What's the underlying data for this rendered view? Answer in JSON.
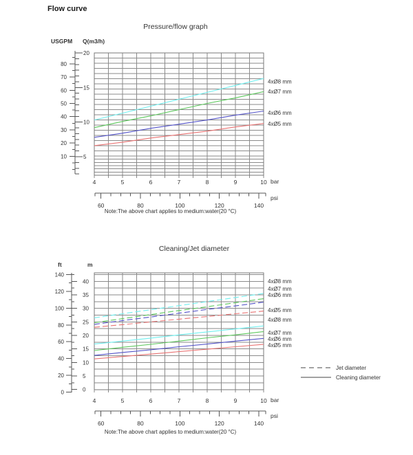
{
  "page": {
    "title": "Flow curve"
  },
  "colors": {
    "diam8": "#6FEFEF",
    "diam7": "#5CC85C",
    "diam6": "#5353C8",
    "diam5": "#E87272",
    "grid": "#8a8a8a",
    "border": "#777777",
    "axis": "#555555",
    "text": "#333333",
    "legend_line": "#444444"
  },
  "chart_data": [
    {
      "type": "line",
      "title": "Pressure/flow graph",
      "x": {
        "unit": "bar",
        "ticks": [
          4,
          5,
          6,
          7,
          8,
          9,
          10
        ],
        "range": [
          4,
          10
        ]
      },
      "x2": {
        "unit": "psi",
        "ticks": [
          60,
          80,
          100,
          120,
          140
        ],
        "range": [
          58,
          145
        ]
      },
      "y": {
        "unit": "Q(m3/h)",
        "ticks": [
          5,
          10,
          15,
          20
        ],
        "range": [
          2.5,
          20
        ]
      },
      "y2": {
        "unit": "USGPM",
        "ticks": [
          10,
          20,
          30,
          40,
          50,
          60,
          70,
          80
        ],
        "range": [
          0,
          90
        ]
      },
      "grid": true,
      "series": [
        {
          "name": "4xØ8 mm",
          "color": "#6FEFEF",
          "style": "solid",
          "x": [
            4,
            5,
            6,
            7,
            8,
            9,
            10
          ],
          "values": [
            10.3,
            11.3,
            12.3,
            13.3,
            14.3,
            15.3,
            16.3
          ]
        },
        {
          "name": "4xØ7 mm",
          "color": "#5CC85C",
          "style": "solid",
          "x": [
            4,
            5,
            6,
            7,
            8,
            9,
            10
          ],
          "values": [
            9.2,
            10.1,
            10.9,
            11.8,
            12.7,
            13.5,
            14.4
          ]
        },
        {
          "name": "4xØ6 mm",
          "color": "#5353C8",
          "style": "solid",
          "x": [
            4,
            5,
            6,
            7,
            8,
            9,
            10
          ],
          "values": [
            7.8,
            8.4,
            9.1,
            9.7,
            10.3,
            11.0,
            11.6
          ]
        },
        {
          "name": "4xØ5 mm",
          "color": "#E87272",
          "style": "solid",
          "x": [
            4,
            5,
            6,
            7,
            8,
            9,
            10
          ],
          "values": [
            6.6,
            7.1,
            7.7,
            8.2,
            8.7,
            9.3,
            9.8
          ]
        }
      ],
      "note": "Note:The above chart applies to medium:water(20 °C)"
    },
    {
      "type": "line",
      "title": "Cleaning/Jet diameter",
      "x": {
        "unit": "bar",
        "ticks": [
          4,
          5,
          6,
          7,
          8,
          9,
          10
        ],
        "range": [
          4,
          10
        ]
      },
      "x2": {
        "unit": "psi",
        "ticks": [
          60,
          80,
          100,
          120,
          140
        ],
        "range": [
          58,
          145
        ]
      },
      "y": {
        "unit": "m",
        "ticks": [
          0,
          5,
          10,
          15,
          20,
          25,
          30,
          35,
          40
        ],
        "range": [
          0,
          43
        ]
      },
      "y2": {
        "unit": "ft",
        "ticks": [
          0,
          20,
          40,
          60,
          80,
          100,
          120,
          140
        ],
        "range": [
          0,
          140
        ]
      },
      "grid": true,
      "series": [
        {
          "name": "4xØ8 mm",
          "group": "jet",
          "color": "#6FEFEF",
          "style": "dashed",
          "x": [
            4,
            5,
            6,
            7,
            8,
            9,
            10
          ],
          "values": [
            26.5,
            28.0,
            29.5,
            31.0,
            32.5,
            34.0,
            35.5
          ]
        },
        {
          "name": "4xØ7 mm",
          "group": "jet",
          "color": "#5CC85C",
          "style": "dashed",
          "x": [
            4,
            5,
            6,
            7,
            8,
            9,
            10
          ],
          "values": [
            24.7,
            26.2,
            27.7,
            29.2,
            30.6,
            32.1,
            33.6
          ]
        },
        {
          "name": "4xØ6 mm",
          "group": "jet",
          "color": "#5353C8",
          "style": "dashed",
          "x": [
            4,
            5,
            6,
            7,
            8,
            9,
            10
          ],
          "values": [
            24.1,
            25.5,
            26.8,
            28.2,
            29.6,
            30.9,
            32.3
          ]
        },
        {
          "name": "4xØ5 mm",
          "group": "jet",
          "color": "#E87272",
          "style": "dashed",
          "x": [
            4,
            5,
            6,
            7,
            8,
            9,
            10
          ],
          "values": [
            23.0,
            24.0,
            25.0,
            26.0,
            27.0,
            28.0,
            29.0
          ]
        },
        {
          "name": "4xØ8 mm",
          "group": "cleaning",
          "color": "#6FEFEF",
          "style": "solid",
          "x": [
            4,
            5,
            6,
            7,
            8,
            9,
            10
          ],
          "values": [
            16.8,
            17.9,
            19.0,
            20.2,
            21.3,
            22.4,
            23.5
          ]
        },
        {
          "name": "4xØ7 mm",
          "group": "cleaning",
          "color": "#5CC85C",
          "style": "solid",
          "x": [
            4,
            5,
            6,
            7,
            8,
            9,
            10
          ],
          "values": [
            14.4,
            15.6,
            16.7,
            17.9,
            19.1,
            20.2,
            21.4
          ]
        },
        {
          "name": "4xØ6 mm",
          "group": "cleaning",
          "color": "#5353C8",
          "style": "solid",
          "x": [
            4,
            5,
            6,
            7,
            8,
            9,
            10
          ],
          "values": [
            12.6,
            13.7,
            14.7,
            15.8,
            16.8,
            17.9,
            18.9
          ]
        },
        {
          "name": "4xØ5 mm",
          "group": "cleaning",
          "color": "#E87272",
          "style": "solid",
          "x": [
            4,
            5,
            6,
            7,
            8,
            9,
            10
          ],
          "values": [
            11.3,
            12.2,
            13.1,
            14.0,
            14.9,
            15.8,
            16.7
          ]
        }
      ],
      "legend": [
        {
          "label": "Jet diameter",
          "style": "dashed"
        },
        {
          "label": "Cleaning diameter",
          "style": "solid"
        }
      ],
      "note": "Note:The above chart applies to medium:water(20 °C)"
    }
  ]
}
